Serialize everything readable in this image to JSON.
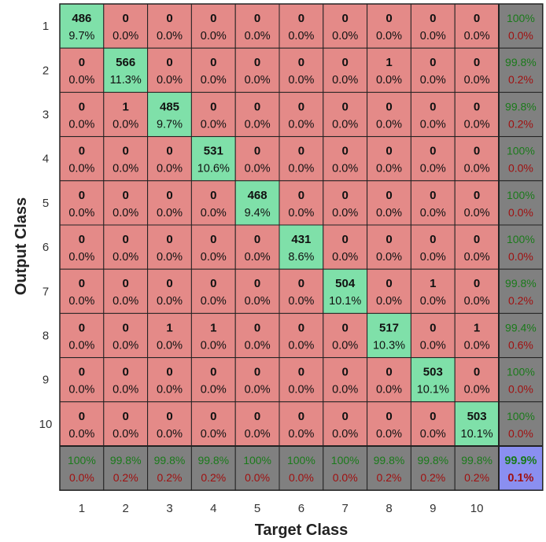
{
  "chart_data": {
    "type": "heatmap",
    "xlabel": "Target Class",
    "ylabel": "Output Class",
    "classes": [
      "1",
      "2",
      "3",
      "4",
      "5",
      "6",
      "7",
      "8",
      "9",
      "10"
    ],
    "counts": [
      [
        486,
        0,
        0,
        0,
        0,
        0,
        0,
        0,
        0,
        0
      ],
      [
        0,
        566,
        0,
        0,
        0,
        0,
        0,
        1,
        0,
        0
      ],
      [
        0,
        1,
        485,
        0,
        0,
        0,
        0,
        0,
        0,
        0
      ],
      [
        0,
        0,
        0,
        531,
        0,
        0,
        0,
        0,
        0,
        0
      ],
      [
        0,
        0,
        0,
        0,
        468,
        0,
        0,
        0,
        0,
        0
      ],
      [
        0,
        0,
        0,
        0,
        0,
        431,
        0,
        0,
        0,
        0
      ],
      [
        0,
        0,
        0,
        0,
        0,
        0,
        504,
        0,
        1,
        0
      ],
      [
        0,
        0,
        1,
        1,
        0,
        0,
        0,
        517,
        0,
        1
      ],
      [
        0,
        0,
        0,
        0,
        0,
        0,
        0,
        0,
        503,
        0
      ],
      [
        0,
        0,
        0,
        0,
        0,
        0,
        0,
        0,
        0,
        503
      ]
    ],
    "cell_percents": [
      [
        "9.7%",
        "0.0%",
        "0.0%",
        "0.0%",
        "0.0%",
        "0.0%",
        "0.0%",
        "0.0%",
        "0.0%",
        "0.0%"
      ],
      [
        "0.0%",
        "11.3%",
        "0.0%",
        "0.0%",
        "0.0%",
        "0.0%",
        "0.0%",
        "0.0%",
        "0.0%",
        "0.0%"
      ],
      [
        "0.0%",
        "0.0%",
        "9.7%",
        "0.0%",
        "0.0%",
        "0.0%",
        "0.0%",
        "0.0%",
        "0.0%",
        "0.0%"
      ],
      [
        "0.0%",
        "0.0%",
        "0.0%",
        "10.6%",
        "0.0%",
        "0.0%",
        "0.0%",
        "0.0%",
        "0.0%",
        "0.0%"
      ],
      [
        "0.0%",
        "0.0%",
        "0.0%",
        "0.0%",
        "9.4%",
        "0.0%",
        "0.0%",
        "0.0%",
        "0.0%",
        "0.0%"
      ],
      [
        "0.0%",
        "0.0%",
        "0.0%",
        "0.0%",
        "0.0%",
        "8.6%",
        "0.0%",
        "0.0%",
        "0.0%",
        "0.0%"
      ],
      [
        "0.0%",
        "0.0%",
        "0.0%",
        "0.0%",
        "0.0%",
        "0.0%",
        "10.1%",
        "0.0%",
        "0.0%",
        "0.0%"
      ],
      [
        "0.0%",
        "0.0%",
        "0.0%",
        "0.0%",
        "0.0%",
        "0.0%",
        "0.0%",
        "10.3%",
        "0.0%",
        "0.0%"
      ],
      [
        "0.0%",
        "0.0%",
        "0.0%",
        "0.0%",
        "0.0%",
        "0.0%",
        "0.0%",
        "0.0%",
        "10.1%",
        "0.0%"
      ],
      [
        "0.0%",
        "0.0%",
        "0.0%",
        "0.0%",
        "0.0%",
        "0.0%",
        "0.0%",
        "0.0%",
        "0.0%",
        "10.1%"
      ]
    ],
    "row_summary": [
      [
        "100%",
        "0.0%"
      ],
      [
        "99.8%",
        "0.2%"
      ],
      [
        "99.8%",
        "0.2%"
      ],
      [
        "100%",
        "0.0%"
      ],
      [
        "100%",
        "0.0%"
      ],
      [
        "100%",
        "0.0%"
      ],
      [
        "99.8%",
        "0.2%"
      ],
      [
        "99.4%",
        "0.6%"
      ],
      [
        "100%",
        "0.0%"
      ],
      [
        "100%",
        "0.0%"
      ]
    ],
    "col_summary": [
      [
        "100%",
        "0.0%"
      ],
      [
        "99.8%",
        "0.2%"
      ],
      [
        "99.8%",
        "0.2%"
      ],
      [
        "99.8%",
        "0.2%"
      ],
      [
        "100%",
        "0.0%"
      ],
      [
        "100%",
        "0.0%"
      ],
      [
        "100%",
        "0.0%"
      ],
      [
        "99.8%",
        "0.2%"
      ],
      [
        "99.8%",
        "0.2%"
      ],
      [
        "99.8%",
        "0.2%"
      ]
    ],
    "overall": [
      "99.9%",
      "0.1%"
    ],
    "colors": {
      "correct": "#7fe0a9",
      "incorrect": "#e48a88",
      "summary": "#808080",
      "overall": "#8a8ff0",
      "grid": "#222222"
    }
  }
}
